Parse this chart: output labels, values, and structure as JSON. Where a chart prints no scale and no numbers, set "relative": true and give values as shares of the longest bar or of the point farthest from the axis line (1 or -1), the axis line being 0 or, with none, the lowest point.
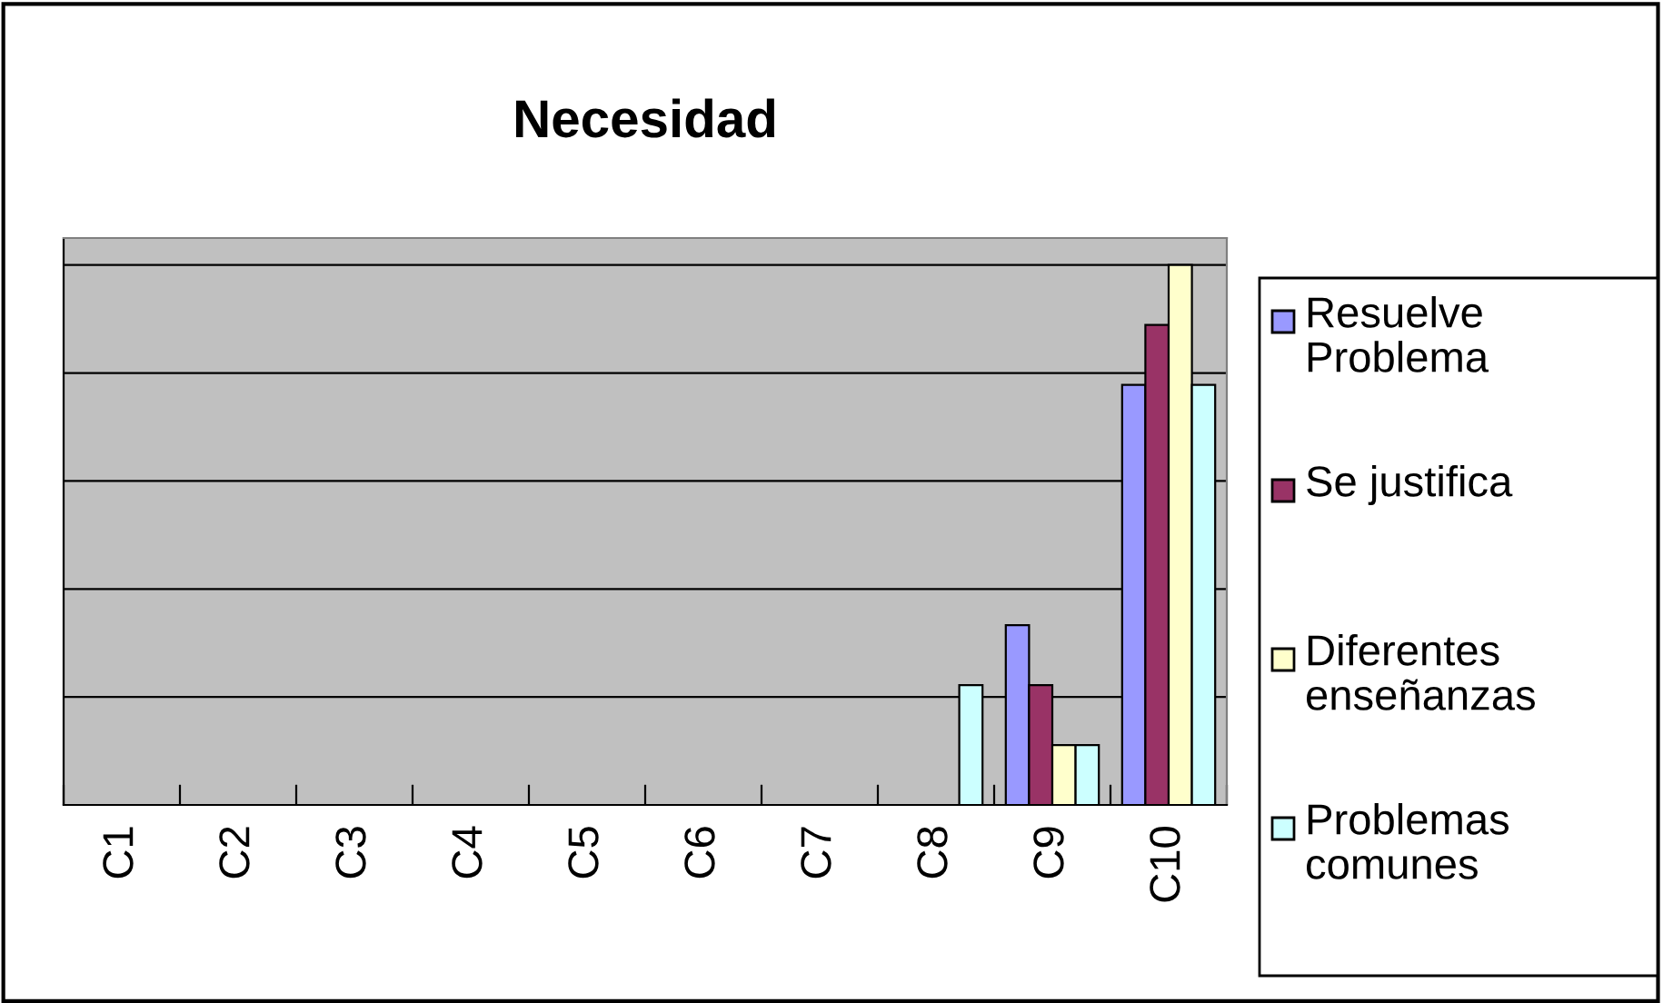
{
  "chart_data": {
    "type": "bar",
    "title": "Necesidad",
    "relative": true,
    "categories": [
      "C1",
      "C2",
      "C3",
      "C4",
      "C5",
      "C6",
      "C7",
      "C8",
      "C9",
      "C10"
    ],
    "series": [
      {
        "name": "Resuelve Problema",
        "color": "#9999ff",
        "values": [
          null,
          null,
          null,
          null,
          null,
          null,
          null,
          null,
          0.333,
          0.778
        ]
      },
      {
        "name": "Se justifica",
        "color": "#993366",
        "values": [
          null,
          null,
          null,
          null,
          null,
          null,
          null,
          null,
          0.222,
          0.889
        ]
      },
      {
        "name": "Diferentes enseñanzas",
        "color": "#ffffcc",
        "values": [
          null,
          null,
          null,
          null,
          null,
          null,
          null,
          null,
          0.111,
          1
        ]
      },
      {
        "name": "Problemas comunes",
        "color": "#ccffff",
        "values": [
          null,
          null,
          null,
          null,
          null,
          null,
          null,
          0.222,
          0.111,
          0.778
        ]
      }
    ],
    "grid": "y",
    "legend": "right"
  }
}
